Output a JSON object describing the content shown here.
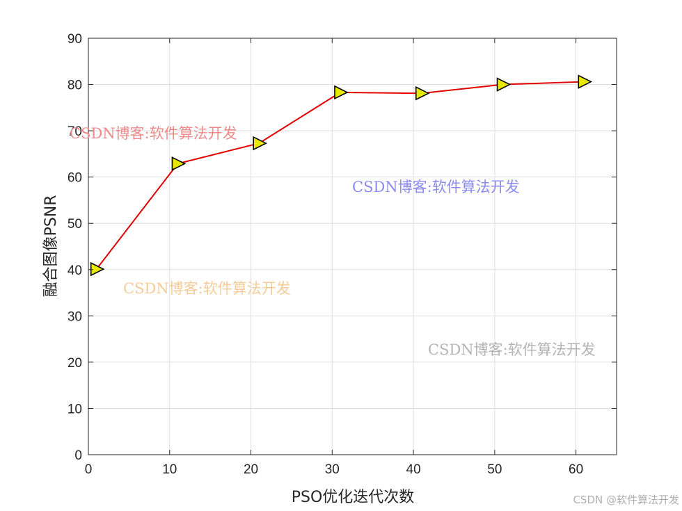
{
  "chart_data": {
    "type": "line",
    "xlabel": "PSO优化迭代次数",
    "ylabel": "融合图像PSNR",
    "xlim": [
      0,
      65
    ],
    "ylim": [
      0,
      90
    ],
    "xticks": [
      0,
      10,
      20,
      30,
      40,
      50,
      60
    ],
    "yticks": [
      0,
      10,
      20,
      30,
      40,
      50,
      60,
      70,
      80,
      90
    ],
    "grid": true,
    "box": true,
    "series": [
      {
        "x": [
          1,
          11,
          21,
          31,
          41,
          51,
          61
        ],
        "values": [
          40.1,
          62.9,
          67.3,
          78.3,
          78.1,
          80.0,
          80.6
        ],
        "line_color": "#e00000",
        "marker": "triangle-right",
        "marker_color": "#e8e800",
        "marker_edge": "#000000"
      }
    ]
  },
  "watermarks": [
    {
      "text": "CSDN博客:软件算法开发",
      "color": "#f08a8a"
    },
    {
      "text": "CSDN博客:软件算法开发",
      "color": "#8a8af0"
    },
    {
      "text": "CSDN博客:软件算法开发",
      "color": "#f5cc99"
    },
    {
      "text": "CSDN博客:软件算法开发",
      "color": "#b4b4b4"
    }
  ],
  "footer": {
    "credit": "CSDN @软件算法开发"
  }
}
